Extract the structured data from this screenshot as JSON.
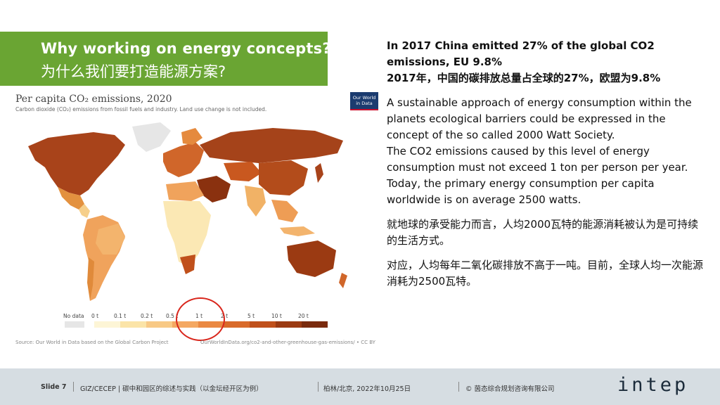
{
  "banner": {
    "title_en": "Why working on energy concepts?",
    "title_cn": "为什么我们要打造能源方案?"
  },
  "chart": {
    "title": "Per capita CO₂ emissions, 2020",
    "subtitle": "Carbon dioxide (CO₂) emissions from fossil fuels and industry. Land use change is not included.",
    "logo": [
      "Our World",
      "in Data"
    ],
    "source_left": "Source: Our World in Data based on the Global Carbon Project",
    "source_right": "OurWorldInData.org/co2-and-other-greenhouse-gas-emissions/ • CC BY",
    "legend_nodata": "No data",
    "legend_ticks": [
      "0 t",
      "0.1 t",
      "0.2 t",
      "0.5 t",
      "1 t",
      "2 t",
      "5 t",
      "10 t",
      "20 t"
    ],
    "legend_colors": [
      "#fdf5d6",
      "#fbe4a8",
      "#f8c985",
      "#f4a862",
      "#ea8842",
      "#d96a2a",
      "#c0501b",
      "#9b3a12",
      "#7a2a0d"
    ]
  },
  "chart_data": {
    "type": "choropleth",
    "title": "Per capita CO₂ emissions, 2020",
    "subtitle": "Carbon dioxide (CO₂) emissions from fossil fuels and industry. Land use change is not included.",
    "legend_bins_t": [
      0,
      0.1,
      0.2,
      0.5,
      1,
      2,
      5,
      10,
      20
    ],
    "legend_labels": [
      "No data",
      "0 t",
      "0.1 t",
      "0.2 t",
      "0.5 t",
      "1 t",
      "2 t",
      "5 t",
      "10 t",
      "20 t"
    ],
    "highlighted_bin": "1 t"
  },
  "text": {
    "p1_en": "In 2017 China emitted 27% of the global CO2 emissions, EU 9.8%",
    "p1_cn": "2017年，中国的碳排放总量占全球的27%，欧盟为9.8%",
    "p2": "A sustainable approach of energy consumption within the planets ecological barriers could be expressed in the concept of the so called 2000 Watt Society.",
    "p3": "The CO2 emissions caused by this level of energy consumption must not exceed 1 ton per person per year. Today, the primary energy consumption per capita worldwide is on average 2500 watts.",
    "p4": "就地球的承受能力而言，人均2000瓦特的能源消耗被认为是可持续的生活方式。",
    "p5": "对应，人均每年二氧化碳排放不高于一吨。目前，全球人均一次能源消耗为2500瓦特。"
  },
  "footer": {
    "slide": "Slide 7",
    "project": "GIZ/CECEP | 碳中和园区的综述与实践（以金坛经开区为例）",
    "place_date": "柏林/北京, 2022年10月25日",
    "copyright": "© 茵态综合规划咨询有限公司",
    "brand": "intep"
  }
}
